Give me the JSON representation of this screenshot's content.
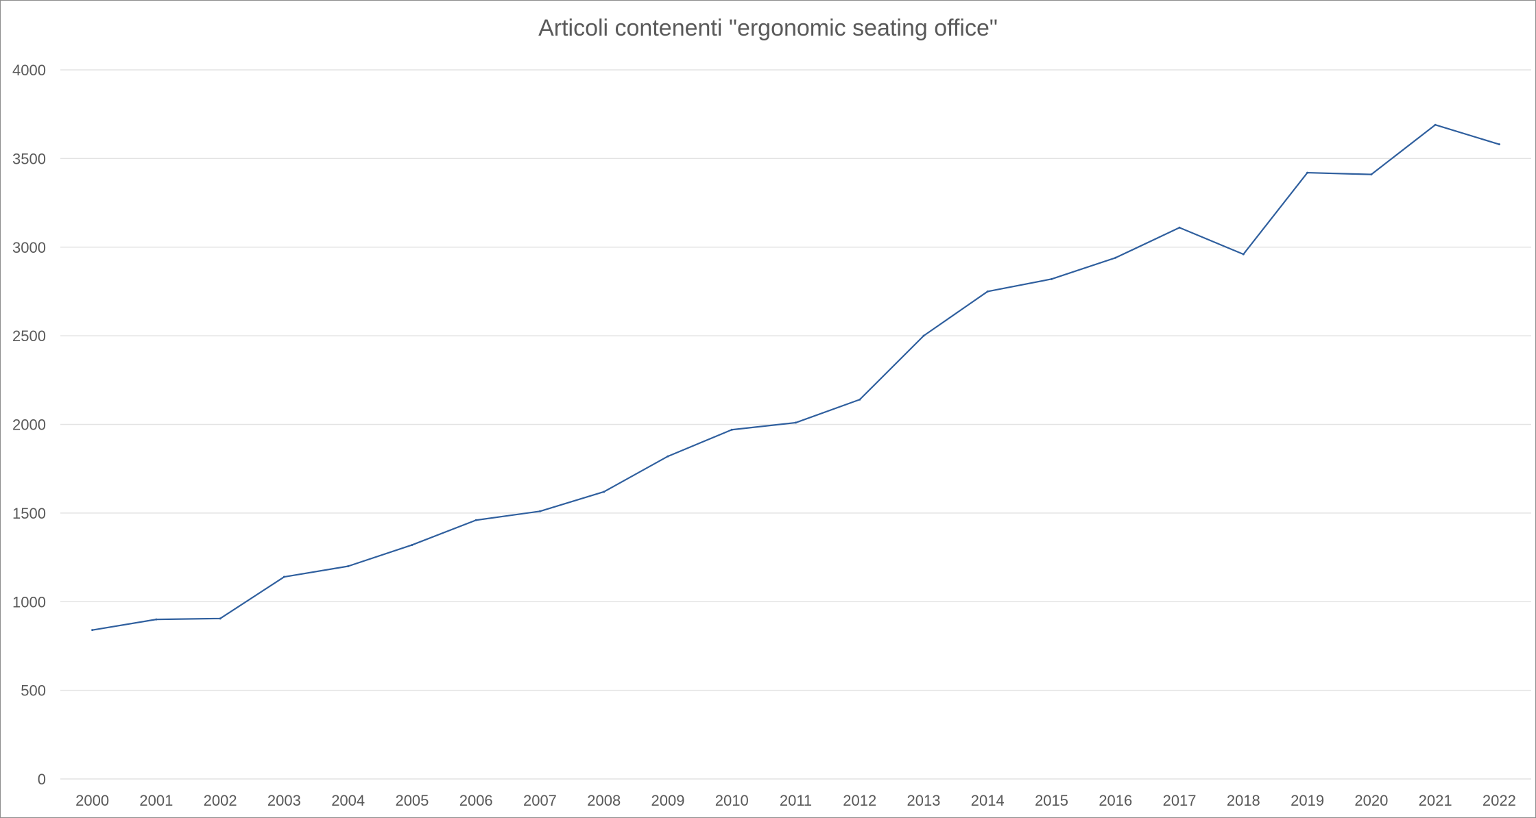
{
  "chart_data": {
    "type": "line",
    "title": "Articoli contenenti \"ergonomic seating office\"",
    "xlabel": "",
    "ylabel": "",
    "categories": [
      "2000",
      "2001",
      "2002",
      "2003",
      "2004",
      "2005",
      "2006",
      "2007",
      "2008",
      "2009",
      "2010",
      "2011",
      "2012",
      "2013",
      "2014",
      "2015",
      "2016",
      "2017",
      "2018",
      "2019",
      "2020",
      "2021",
      "2022"
    ],
    "series": [
      {
        "values": [
          840,
          900,
          905,
          1140,
          1200,
          1320,
          1460,
          1510,
          1620,
          1820,
          1970,
          2010,
          2140,
          2500,
          2750,
          2820,
          2940,
          3110,
          2960,
          3420,
          3410,
          3690,
          3580
        ]
      }
    ],
    "ylim": [
      0,
      4000
    ],
    "yticks": [
      "0",
      "500",
      "1000",
      "1500",
      "2000",
      "2500",
      "3000",
      "3500",
      "4000"
    ],
    "grid": true,
    "legend": "none",
    "colors": {
      "line": "#2f5f9e",
      "grid": "#e3e3e3",
      "text": "#595959",
      "border": "#8c8c8c"
    }
  }
}
